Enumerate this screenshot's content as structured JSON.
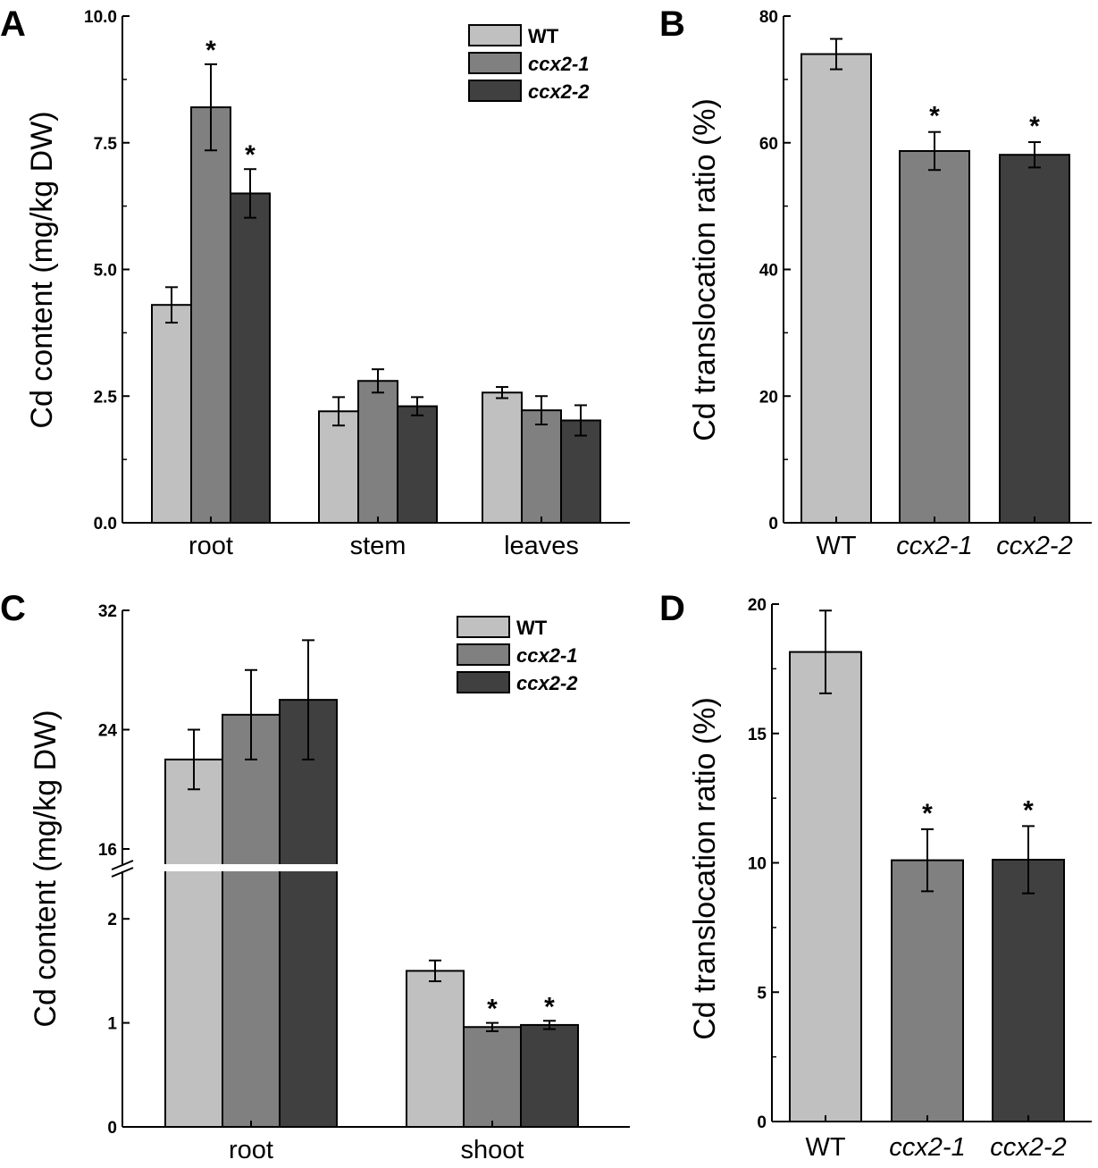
{
  "chart_data": [
    {
      "panel": "A",
      "type": "bar",
      "xlabel": "",
      "ylabel": "Cd content (mg/kg DW)",
      "ylim": [
        0,
        10
      ],
      "yticks": [
        "0.0",
        "2.5",
        "5.0",
        "7.5",
        "10.0"
      ],
      "categories": [
        "root",
        "stem",
        "leaves"
      ],
      "series": [
        {
          "name": "WT",
          "values": [
            4.3,
            2.2,
            2.57
          ],
          "errors": [
            0.35,
            0.28,
            0.11
          ],
          "sig": [
            false,
            false,
            false
          ]
        },
        {
          "name": "ccx2-1",
          "values": [
            8.2,
            2.8,
            2.22
          ],
          "errors": [
            0.85,
            0.23,
            0.28
          ],
          "sig": [
            true,
            false,
            false
          ]
        },
        {
          "name": "ccx2-2",
          "values": [
            6.5,
            2.3,
            2.02
          ],
          "errors": [
            0.48,
            0.18,
            0.3
          ],
          "sig": [
            true,
            false,
            false
          ]
        }
      ],
      "legend": [
        "WT",
        "ccx2-1",
        "ccx2-2"
      ],
      "legend_position": "top-right",
      "sig_marker": "*"
    },
    {
      "panel": "B",
      "type": "bar",
      "xlabel": "",
      "ylabel": "Cd translocation ratio (%)",
      "ylim": [
        0,
        80
      ],
      "yticks": [
        "0",
        "20",
        "40",
        "60",
        "80"
      ],
      "categories": [
        "WT",
        "ccx2-1",
        "ccx2-2"
      ],
      "values": [
        74,
        58.7,
        58.1
      ],
      "errors": [
        2.4,
        3.0,
        2.0
      ],
      "sig": [
        false,
        true,
        true
      ],
      "sig_marker": "*"
    },
    {
      "panel": "C",
      "type": "bar",
      "xlabel": "",
      "ylabel": "Cd content (mg/kg DW)",
      "axis_break": {
        "lower": [
          0,
          2.5
        ],
        "upper": [
          16,
          32
        ]
      },
      "yticks_lower": [
        "0",
        "1",
        "2"
      ],
      "yticks_upper": [
        "16",
        "24",
        "32"
      ],
      "categories": [
        "root",
        "shoot"
      ],
      "series": [
        {
          "name": "WT",
          "values": [
            22,
            1.5
          ],
          "errors": [
            2.0,
            0.1
          ],
          "sig": [
            false,
            false
          ]
        },
        {
          "name": "ccx2-1",
          "values": [
            25,
            0.96
          ],
          "errors": [
            3.0,
            0.04
          ],
          "sig": [
            false,
            true
          ]
        },
        {
          "name": "ccx2-2",
          "values": [
            26,
            0.98
          ],
          "errors": [
            4.0,
            0.04
          ],
          "sig": [
            false,
            true
          ]
        }
      ],
      "legend": [
        "WT",
        "ccx2-1",
        "ccx2-2"
      ],
      "legend_position": "top-right",
      "sig_marker": "*"
    },
    {
      "panel": "D",
      "type": "bar",
      "xlabel": "",
      "ylabel": "Cd translocation ratio (%)",
      "ylim": [
        0,
        20
      ],
      "yticks": [
        "0",
        "5",
        "10",
        "15",
        "20"
      ],
      "categories": [
        "WT",
        "ccx2-1",
        "ccx2-2"
      ],
      "values": [
        18.15,
        10.1,
        10.12
      ],
      "errors": [
        1.6,
        1.2,
        1.3
      ],
      "sig": [
        false,
        true,
        true
      ],
      "sig_marker": "*"
    }
  ],
  "colors": {
    "WT": "#c0c0c0",
    "ccx2-1": "#808080",
    "ccx2-2": "#404040",
    "axis": "#000000"
  }
}
